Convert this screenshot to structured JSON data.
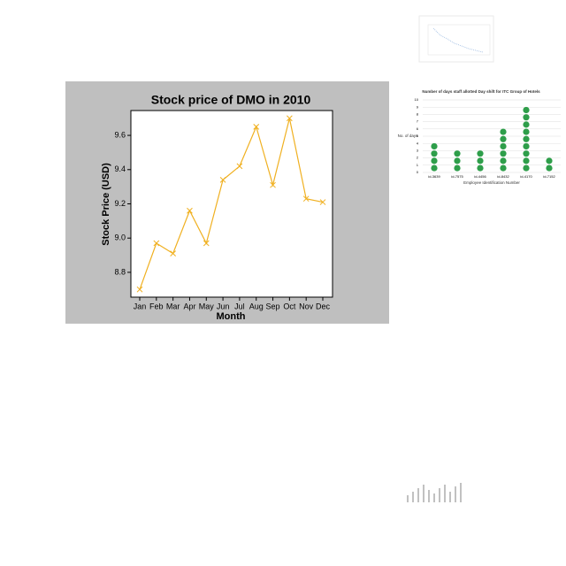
{
  "chart_data": [
    {
      "type": "line",
      "title": "Stock price of DMO in 2010",
      "xlabel": "Month",
      "ylabel": "Stock Price (USD)",
      "categories": [
        "Jan",
        "Feb",
        "Mar",
        "Apr",
        "May",
        "Jun",
        "Jul",
        "Aug",
        "Sep",
        "Oct",
        "Nov",
        "Dec"
      ],
      "series": [
        {
          "color": "#f0b020",
          "values": [
            8.7,
            8.97,
            8.91,
            9.16,
            8.97,
            9.34,
            9.42,
            9.65,
            9.31,
            9.7,
            9.23,
            9.21
          ]
        }
      ],
      "ylim": [
        8.655,
        9.745
      ],
      "yticks": [
        8.8,
        {
          "value": 9,
          "label": "9.0"
        },
        9.2,
        9.4,
        9.6
      ]
    },
    {
      "type": "dot",
      "title": "Number of days staff allotted Day shift for ITC Group of Hotels",
      "xlabel": "Employee Identification Number",
      "ylabel": "No. of days",
      "categories": [
        "id-3639",
        "id-7575",
        "id-4456",
        "id-8432",
        "id-4170",
        "id-7152"
      ],
      "values": [
        4,
        3,
        3,
        6,
        9,
        2
      ],
      "color": "#2e9e4a",
      "ylim": [
        0,
        10
      ],
      "yticks": [
        0,
        1,
        2,
        3,
        4,
        5,
        6,
        7,
        8,
        9,
        10
      ],
      "grid": true
    }
  ]
}
